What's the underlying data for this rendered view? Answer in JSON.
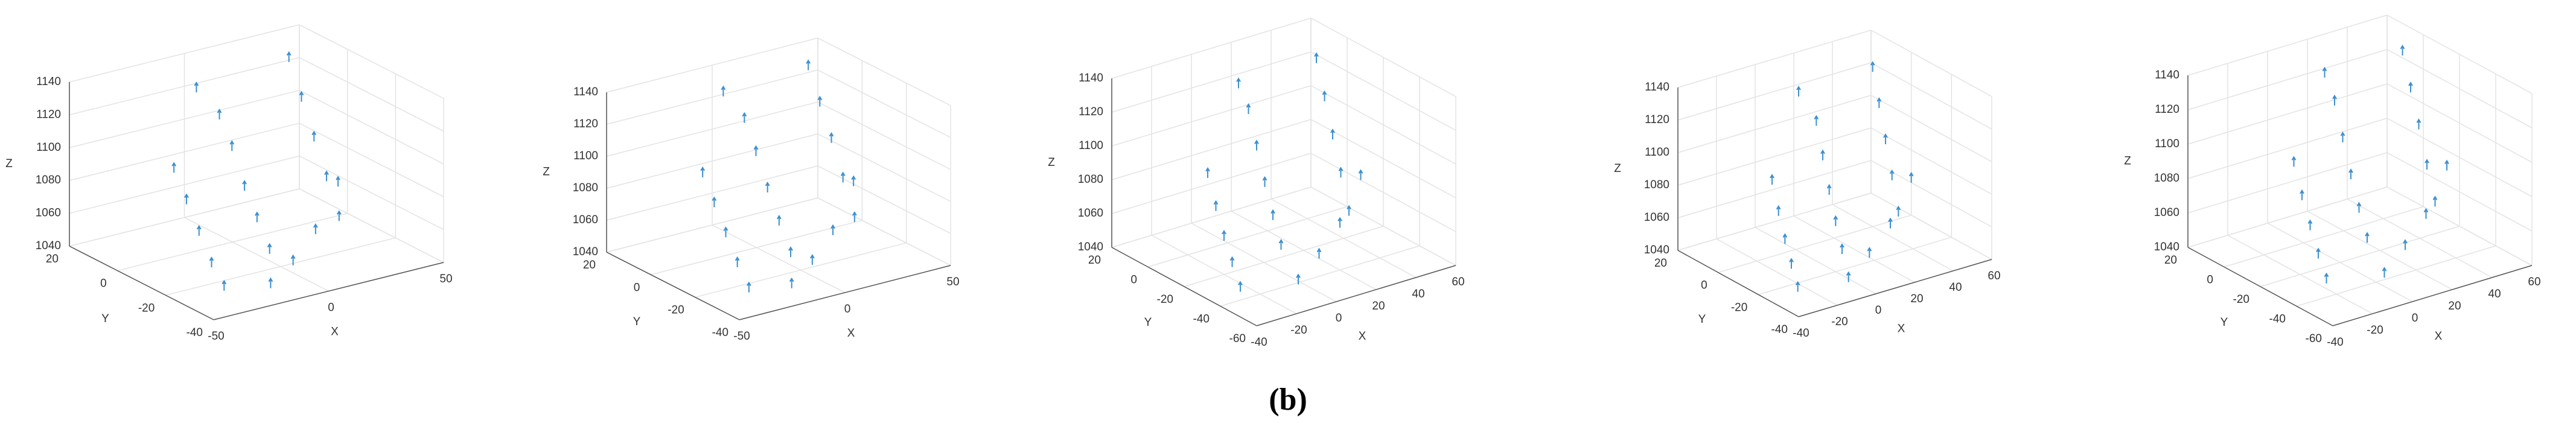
{
  "chart_data": [
    {
      "type": "scatter3d",
      "xlabel": "X",
      "ylabel": "Y",
      "zlabel": "Z",
      "color": "#3a8fd0",
      "xlim": [
        -50,
        50
      ],
      "ylim": [
        -40,
        20
      ],
      "zlim": [
        1040,
        1140
      ],
      "xticks": [
        -50,
        0,
        50
      ],
      "yticks": [
        -40,
        -20,
        0,
        20
      ],
      "zticks": [
        1040,
        1060,
        1080,
        1100,
        1120,
        1140
      ],
      "x": [
        -35,
        -30,
        -25,
        -20,
        -15,
        -10,
        -5,
        0,
        5,
        10,
        15,
        20,
        25,
        30,
        35,
        -20,
        -5,
        10,
        25,
        0
      ],
      "y": [
        -30,
        -20,
        -10,
        0,
        10,
        -25,
        -15,
        -5,
        5,
        15,
        -30,
        -20,
        -10,
        0,
        10,
        -35,
        -30,
        -25,
        -20,
        15
      ],
      "z": [
        1045,
        1050,
        1060,
        1070,
        1080,
        1055,
        1065,
        1075,
        1090,
        1100,
        1070,
        1085,
        1100,
        1115,
        1130,
        1045,
        1050,
        1060,
        1080,
        1120
      ]
    },
    {
      "type": "scatter3d",
      "xlabel": "X",
      "ylabel": "Y",
      "zlabel": "Z",
      "color": "#3a8fd0",
      "xlim": [
        -50,
        50
      ],
      "ylim": [
        -40,
        20
      ],
      "zlim": [
        1040,
        1140
      ],
      "xticks": [
        -50,
        0,
        50
      ],
      "yticks": [
        -40,
        -20,
        0,
        20
      ],
      "zticks": [
        1040,
        1060,
        1080,
        1100,
        1120,
        1140
      ],
      "x": [
        -35,
        -30,
        -25,
        -20,
        -15,
        -10,
        -5,
        0,
        5,
        10,
        15,
        20,
        25,
        30,
        35,
        -20,
        -5,
        10,
        25,
        0
      ],
      "y": [
        -30,
        -20,
        -10,
        0,
        10,
        -25,
        -15,
        -5,
        5,
        15,
        -30,
        -20,
        -10,
        0,
        10,
        -35,
        -30,
        -25,
        -20,
        15
      ],
      "z": [
        1045,
        1052,
        1062,
        1072,
        1082,
        1055,
        1066,
        1078,
        1092,
        1104,
        1072,
        1088,
        1104,
        1118,
        1132,
        1046,
        1052,
        1062,
        1084,
        1124
      ]
    },
    {
      "type": "scatter3d",
      "xlabel": "X",
      "ylabel": "Y",
      "zlabel": "Z",
      "color": "#3a8fd0",
      "xlim": [
        -40,
        60
      ],
      "ylim": [
        -60,
        20
      ],
      "zlim": [
        1040,
        1140
      ],
      "xticks": [
        -40,
        -20,
        0,
        20,
        40,
        60
      ],
      "yticks": [
        -60,
        -40,
        -20,
        0,
        20
      ],
      "zticks": [
        1040,
        1060,
        1080,
        1100,
        1120,
        1140
      ],
      "x": [
        -30,
        -25,
        -20,
        -15,
        -10,
        -5,
        0,
        5,
        10,
        15,
        20,
        25,
        30,
        35,
        40,
        -10,
        5,
        20,
        35,
        10
      ],
      "y": [
        -40,
        -30,
        -20,
        -10,
        0,
        -35,
        -25,
        -15,
        -5,
        5,
        -45,
        -35,
        -25,
        -15,
        -5,
        -50,
        -45,
        -40,
        -35,
        5
      ],
      "z": [
        1045,
        1052,
        1060,
        1070,
        1082,
        1058,
        1068,
        1080,
        1094,
        1108,
        1075,
        1090,
        1105,
        1120,
        1135,
        1048,
        1055,
        1065,
        1085,
        1125
      ]
    },
    {
      "type": "scatter3d",
      "xlabel": "X",
      "ylabel": "Y",
      "zlabel": "Z",
      "color": "#3a8fd0",
      "xlim": [
        -40,
        60
      ],
      "ylim": [
        -40,
        20
      ],
      "zlim": [
        1040,
        1140
      ],
      "xticks": [
        -40,
        -20,
        0,
        20,
        40,
        60
      ],
      "yticks": [
        -40,
        -20,
        0,
        20
      ],
      "zticks": [
        1040,
        1060,
        1080,
        1100,
        1120,
        1140
      ],
      "x": [
        -30,
        -25,
        -20,
        -15,
        -10,
        -5,
        0,
        5,
        10,
        15,
        20,
        25,
        30,
        35,
        40,
        -10,
        5,
        20,
        35,
        10
      ],
      "y": [
        -30,
        -22,
        -14,
        -6,
        2,
        -28,
        -20,
        -12,
        -4,
        4,
        -32,
        -24,
        -16,
        -8,
        0,
        -36,
        -32,
        -28,
        -24,
        8
      ],
      "z": [
        1045,
        1052,
        1060,
        1070,
        1082,
        1058,
        1068,
        1080,
        1094,
        1108,
        1075,
        1090,
        1105,
        1120,
        1135,
        1048,
        1055,
        1065,
        1085,
        1125
      ]
    },
    {
      "type": "scatter3d",
      "xlabel": "X",
      "ylabel": "Y",
      "zlabel": "Z",
      "color": "#3a8fd0",
      "xlim": [
        -40,
        60
      ],
      "ylim": [
        -60,
        20
      ],
      "zlim": [
        1040,
        1140
      ],
      "xticks": [
        -40,
        -20,
        0,
        20,
        40,
        60
      ],
      "yticks": [
        -60,
        -40,
        -20,
        0,
        20
      ],
      "zticks": [
        1040,
        1060,
        1080,
        1100,
        1120,
        1140
      ],
      "x": [
        -25,
        -20,
        -15,
        -10,
        -5,
        0,
        5,
        10,
        15,
        20,
        25,
        30,
        35,
        40,
        45,
        -5,
        10,
        25,
        40,
        15
      ],
      "y": [
        -40,
        -30,
        -20,
        -10,
        0,
        -35,
        -25,
        -15,
        -5,
        5,
        -45,
        -35,
        -25,
        -15,
        -5,
        -50,
        -45,
        -40,
        -35,
        5
      ],
      "z": [
        1048,
        1055,
        1064,
        1074,
        1086,
        1060,
        1070,
        1082,
        1096,
        1110,
        1078,
        1092,
        1108,
        1122,
        1136,
        1050,
        1058,
        1068,
        1088,
        1128
      ]
    }
  ],
  "caption": "(b)"
}
